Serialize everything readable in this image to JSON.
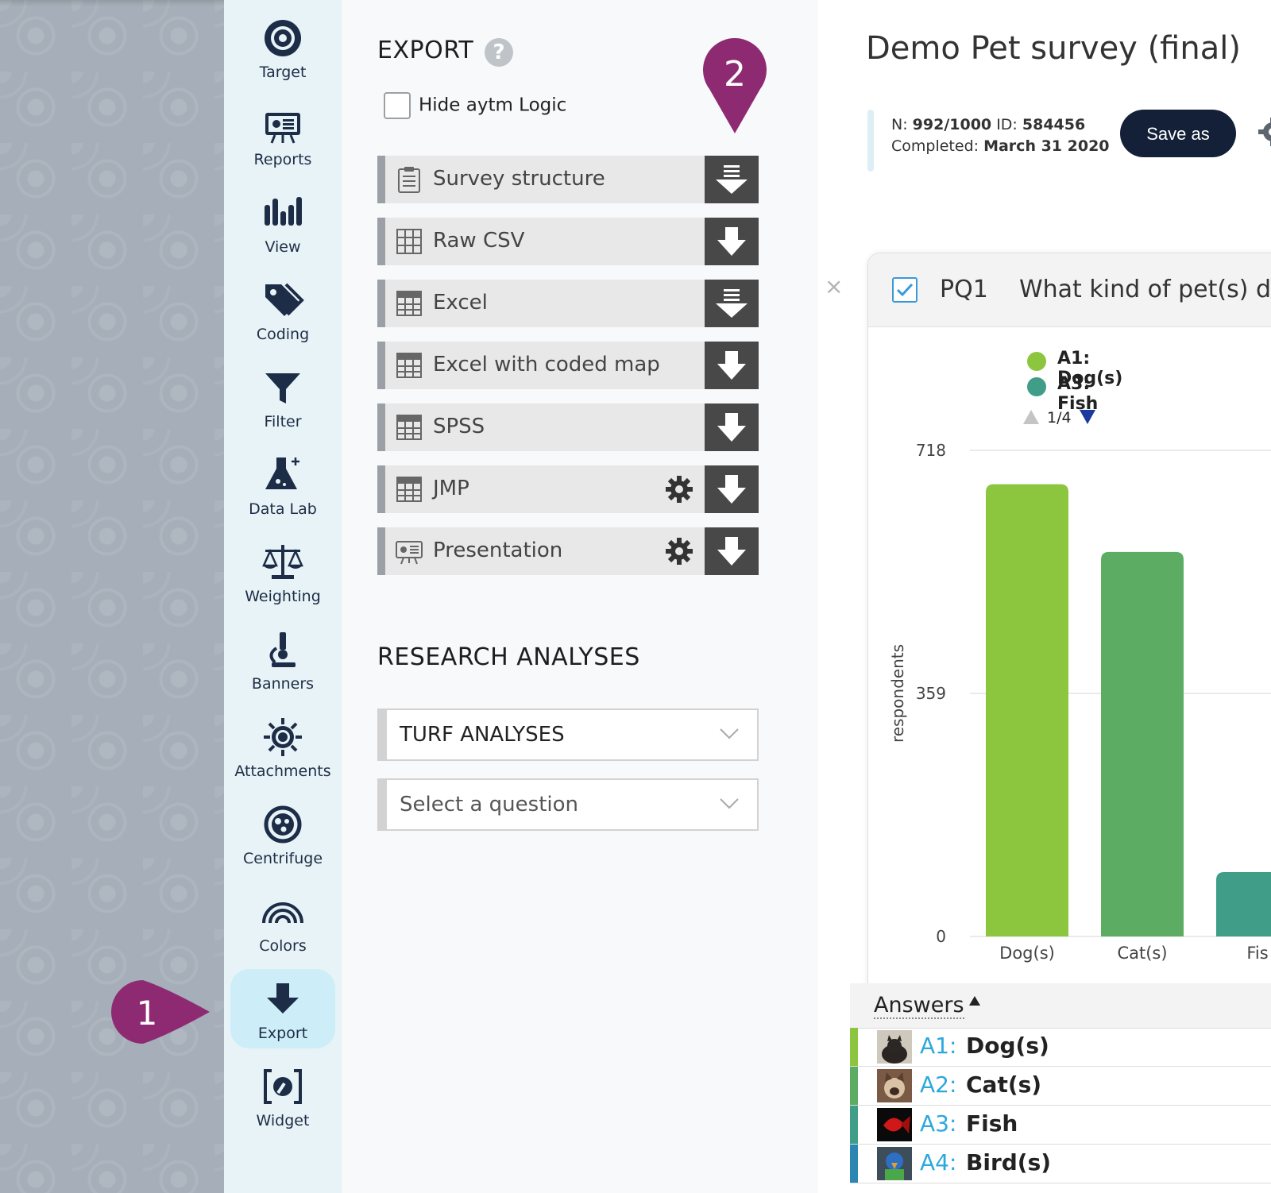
{
  "nav": {
    "items": [
      {
        "label": "Target",
        "icon": "target-icon"
      },
      {
        "label": "Reports",
        "icon": "reports-icon"
      },
      {
        "label": "View",
        "icon": "view-icon"
      },
      {
        "label": "Coding",
        "icon": "tag-icon"
      },
      {
        "label": "Filter",
        "icon": "filter-icon"
      },
      {
        "label": "Data Lab",
        "icon": "flask-icon"
      },
      {
        "label": "Weighting",
        "icon": "scales-icon"
      },
      {
        "label": "Banners",
        "icon": "microscope-icon"
      },
      {
        "label": "Attachments",
        "icon": "sun-icon"
      },
      {
        "label": "Centrifuge",
        "icon": "centrifuge-icon"
      },
      {
        "label": "Colors",
        "icon": "rainbow-icon"
      },
      {
        "label": "Export",
        "icon": "export-arrow-icon",
        "active": true
      },
      {
        "label": "Widget",
        "icon": "widget-icon"
      }
    ]
  },
  "markers": {
    "one": "1",
    "two": "2",
    "color": "#8e2a72"
  },
  "export": {
    "title": "EXPORT",
    "help": "?",
    "hide_logic_label": "Hide aytm Logic",
    "rows": [
      {
        "label": "Survey structure",
        "icon": "clipboard-icon",
        "gear": false,
        "download": "download-list-icon"
      },
      {
        "label": "Raw CSV",
        "icon": "grid-icon",
        "gear": false,
        "download": "download-icon"
      },
      {
        "label": "Excel",
        "icon": "spreadsheet-icon",
        "gear": false,
        "download": "download-list-icon"
      },
      {
        "label": "Excel with coded map",
        "icon": "spreadsheet-icon",
        "gear": false,
        "download": "download-icon"
      },
      {
        "label": "SPSS",
        "icon": "spreadsheet-icon",
        "gear": false,
        "download": "download-icon"
      },
      {
        "label": "JMP",
        "icon": "spreadsheet-icon",
        "gear": true,
        "download": "download-icon"
      },
      {
        "label": "Presentation",
        "icon": "presentation-icon",
        "gear": true,
        "download": "download-icon"
      }
    ]
  },
  "research": {
    "title": "RESEARCH ANALYSES",
    "analysis_select": "TURF ANALYSES",
    "question_select": "Select a question"
  },
  "survey": {
    "title": "Demo Pet survey (final)",
    "n_label": "N:",
    "n_value": "992/1000",
    "id_label": "ID:",
    "id_value": "584456",
    "completed_label": "Completed:",
    "completed_value": "March 31 2020",
    "save_label": "Save as"
  },
  "question": {
    "code": "PQ1",
    "text": "What kind of pet(s) do",
    "close": "×",
    "legend": [
      {
        "label": "A1: Dog(s)",
        "color": "#8cc63f"
      },
      {
        "label": "A3: Fish",
        "color": "#3f9d88"
      }
    ],
    "pager": "1/4"
  },
  "chart_data": {
    "type": "bar",
    "categories": [
      "Dog(s)",
      "Cat(s)",
      "Fis"
    ],
    "values": [
      668,
      568,
      95
    ],
    "colors": [
      "#8cc63f",
      "#5cad63",
      "#3f9d88"
    ],
    "ylabel": "respondents",
    "yticks": [
      "718",
      "359",
      "0"
    ],
    "ylim": [
      0,
      718
    ],
    "grid": true
  },
  "answers": {
    "title": "Answers",
    "rows": [
      {
        "code": "A1:",
        "name": "Dog(s)",
        "color": "#8cc63f"
      },
      {
        "code": "A2:",
        "name": "Cat(s)",
        "color": "#5cad63"
      },
      {
        "code": "A3:",
        "name": "Fish",
        "color": "#3f9d88"
      },
      {
        "code": "A4:",
        "name": "Bird(s)",
        "color": "#2b86b3"
      }
    ]
  }
}
